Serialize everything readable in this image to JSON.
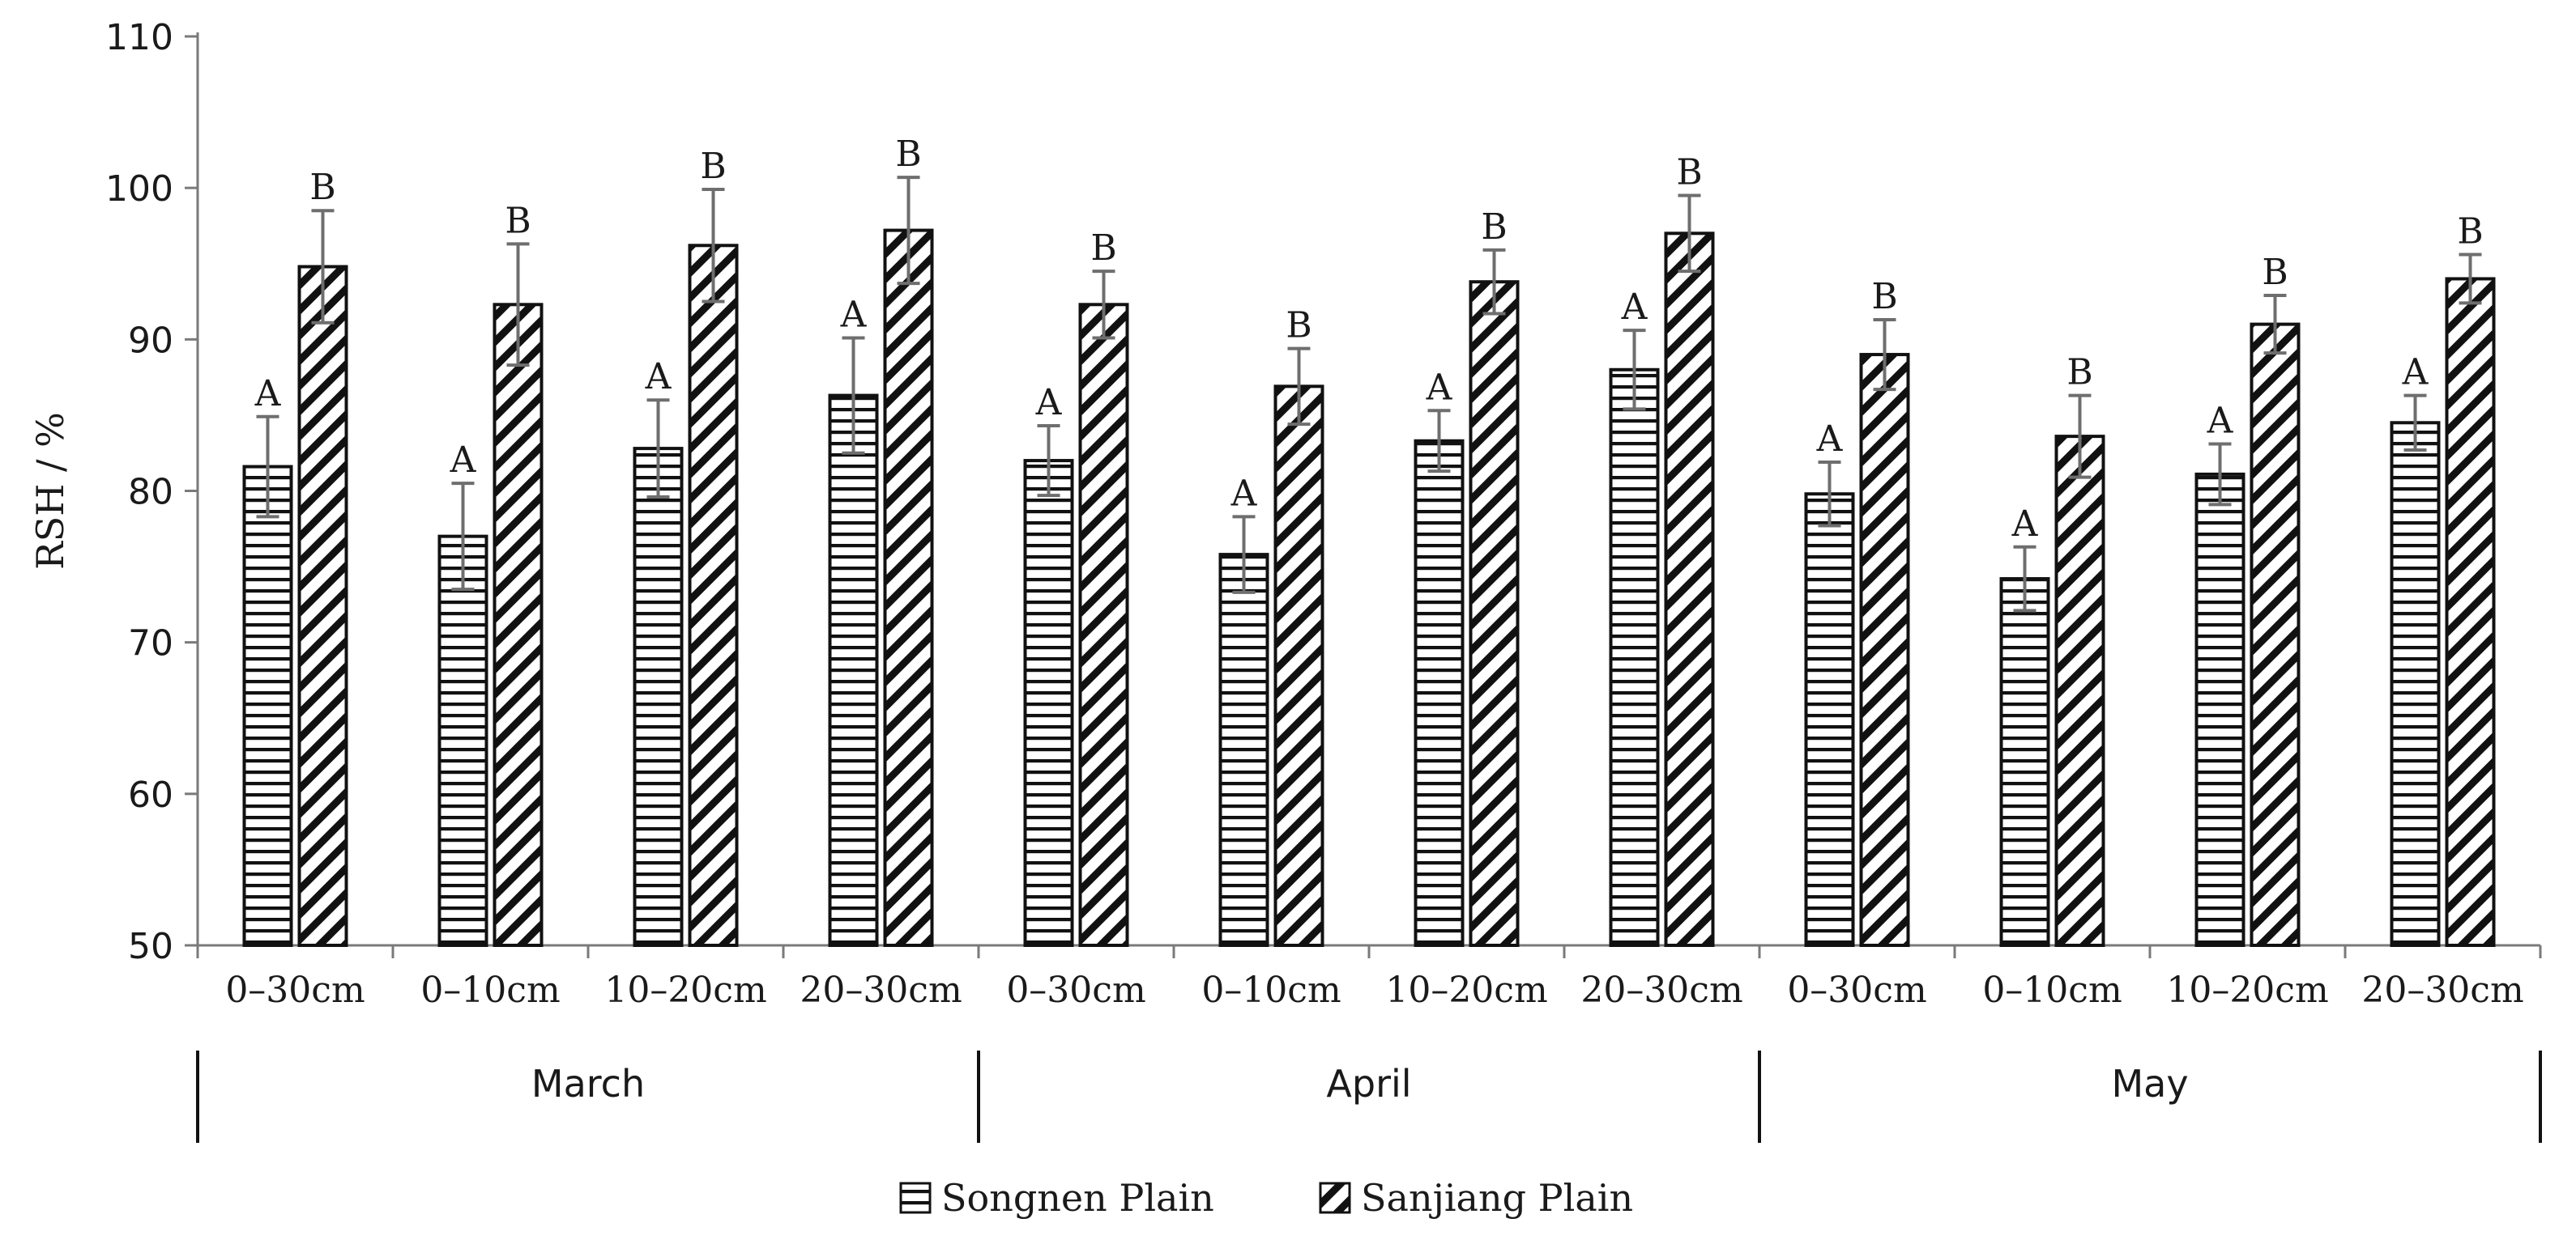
{
  "chart_data": {
    "type": "bar",
    "title": "",
    "xlabel": "",
    "ylabel": "RSH / %",
    "ylim": [
      50,
      110
    ],
    "yticks": [
      50,
      60,
      70,
      80,
      90,
      100,
      110
    ],
    "grid": false,
    "legend_position": "bottom-center",
    "groups": [
      {
        "label": "March",
        "categories": [
          "0–30cm",
          "0–10cm",
          "10–20cm",
          "20–30cm"
        ]
      },
      {
        "label": "April",
        "categories": [
          "0–30cm",
          "0–10cm",
          "10–20cm",
          "20–30cm"
        ]
      },
      {
        "label": "May",
        "categories": [
          "0–30cm",
          "0–10cm",
          "10–20cm",
          "20–30cm"
        ]
      }
    ],
    "series": [
      {
        "name": "Songnen Plain",
        "pattern": "horizontal",
        "values": [
          81.6,
          77.0,
          82.8,
          86.3,
          82.0,
          75.8,
          83.3,
          88.0,
          79.8,
          74.2,
          81.1,
          84.5
        ],
        "errors": [
          3.3,
          3.5,
          3.2,
          3.8,
          2.3,
          2.5,
          2.0,
          2.6,
          2.1,
          2.1,
          2.0,
          1.8
        ],
        "significance": [
          "A",
          "A",
          "A",
          "A",
          "A",
          "A",
          "A",
          "A",
          "A",
          "A",
          "A",
          "A"
        ]
      },
      {
        "name": "Sanjiang Plain",
        "pattern": "diagonal",
        "values": [
          94.8,
          92.3,
          96.2,
          97.2,
          92.3,
          86.9,
          93.8,
          97.0,
          89.0,
          83.6,
          91.0,
          94.0
        ],
        "errors": [
          3.7,
          4.0,
          3.7,
          3.5,
          2.2,
          2.5,
          2.1,
          2.5,
          2.3,
          2.7,
          1.9,
          1.6
        ],
        "significance": [
          "B",
          "B",
          "B",
          "B",
          "B",
          "B",
          "B",
          "B",
          "B",
          "B",
          "B",
          "B"
        ]
      }
    ]
  }
}
